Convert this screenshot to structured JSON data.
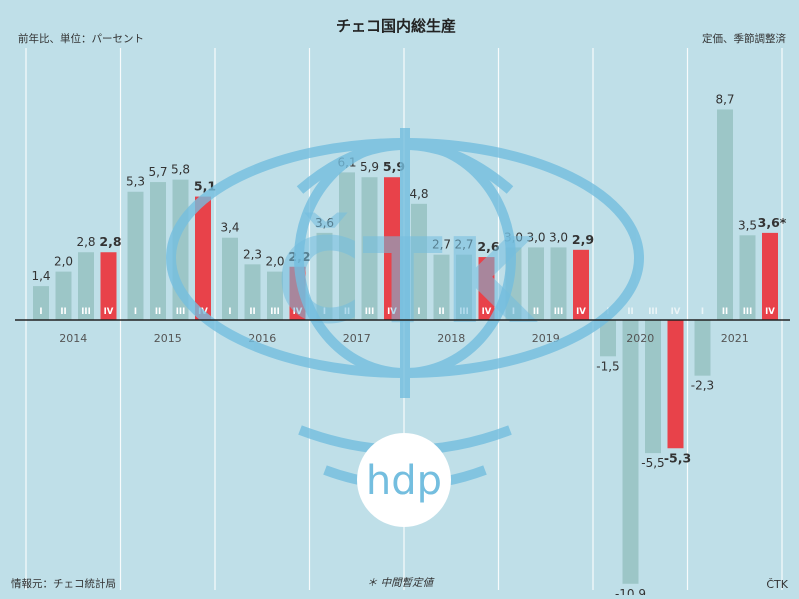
{
  "header": {
    "title": "チェコ国内総生産",
    "subtitle_left": "前年比、単位：パーセント",
    "subtitle_right": "定価、季節調整済"
  },
  "footer": {
    "source": "情報元：チェコ統計局",
    "note": "＊ 中間暫定値",
    "credit": "ČTK"
  },
  "watermark": {
    "text": "ČTK",
    "badge_text": "hdp"
  },
  "colors": {
    "background": "#bfdfe8",
    "bar_regular": "#9cc6c7",
    "bar_q4": "#e8424a",
    "watermark": "#74bedf",
    "gridline": "#ffffff",
    "axis": "#222222",
    "text": "#333333"
  },
  "chart_data": {
    "type": "bar",
    "title": "チェコ国内総生産",
    "ylabel": "前年比、単位：パーセント",
    "unit": "パーセント",
    "years": [
      "2014",
      "2015",
      "2016",
      "2017",
      "2018",
      "2019",
      "2020",
      "2021"
    ],
    "quarter_labels": [
      "I",
      "II",
      "III",
      "IV"
    ],
    "values": [
      [
        1.4,
        2.0,
        2.8,
        2.8
      ],
      [
        5.3,
        5.7,
        5.8,
        5.1
      ],
      [
        3.4,
        2.3,
        2.0,
        2.2
      ],
      [
        3.6,
        6.1,
        5.9,
        5.9
      ],
      [
        4.8,
        2.7,
        2.7,
        2.6
      ],
      [
        3.0,
        3.0,
        3.0,
        2.9
      ],
      [
        -1.5,
        -10.9,
        -5.5,
        -5.3
      ],
      [
        -2.3,
        8.7,
        3.5,
        3.6
      ]
    ],
    "value_labels": [
      [
        "1,4",
        "2,0",
        "2,8",
        "2,8"
      ],
      [
        "5,3",
        "5,7",
        "5,8",
        "5,1"
      ],
      [
        "3,4",
        "2,3",
        "2,0",
        "2,2"
      ],
      [
        "3,6",
        "6,1",
        "5,9",
        "5,9"
      ],
      [
        "4,8",
        "2,7",
        "2,7",
        "2,6"
      ],
      [
        "3,0",
        "3,0",
        "3,0",
        "2,9"
      ],
      [
        "-1,5",
        "-10,9",
        "-5,5",
        "-5,3"
      ],
      [
        "-2,3",
        "8,7",
        "3,5",
        "3,6*"
      ]
    ],
    "highlight_quarter": "IV",
    "grid": true
  }
}
